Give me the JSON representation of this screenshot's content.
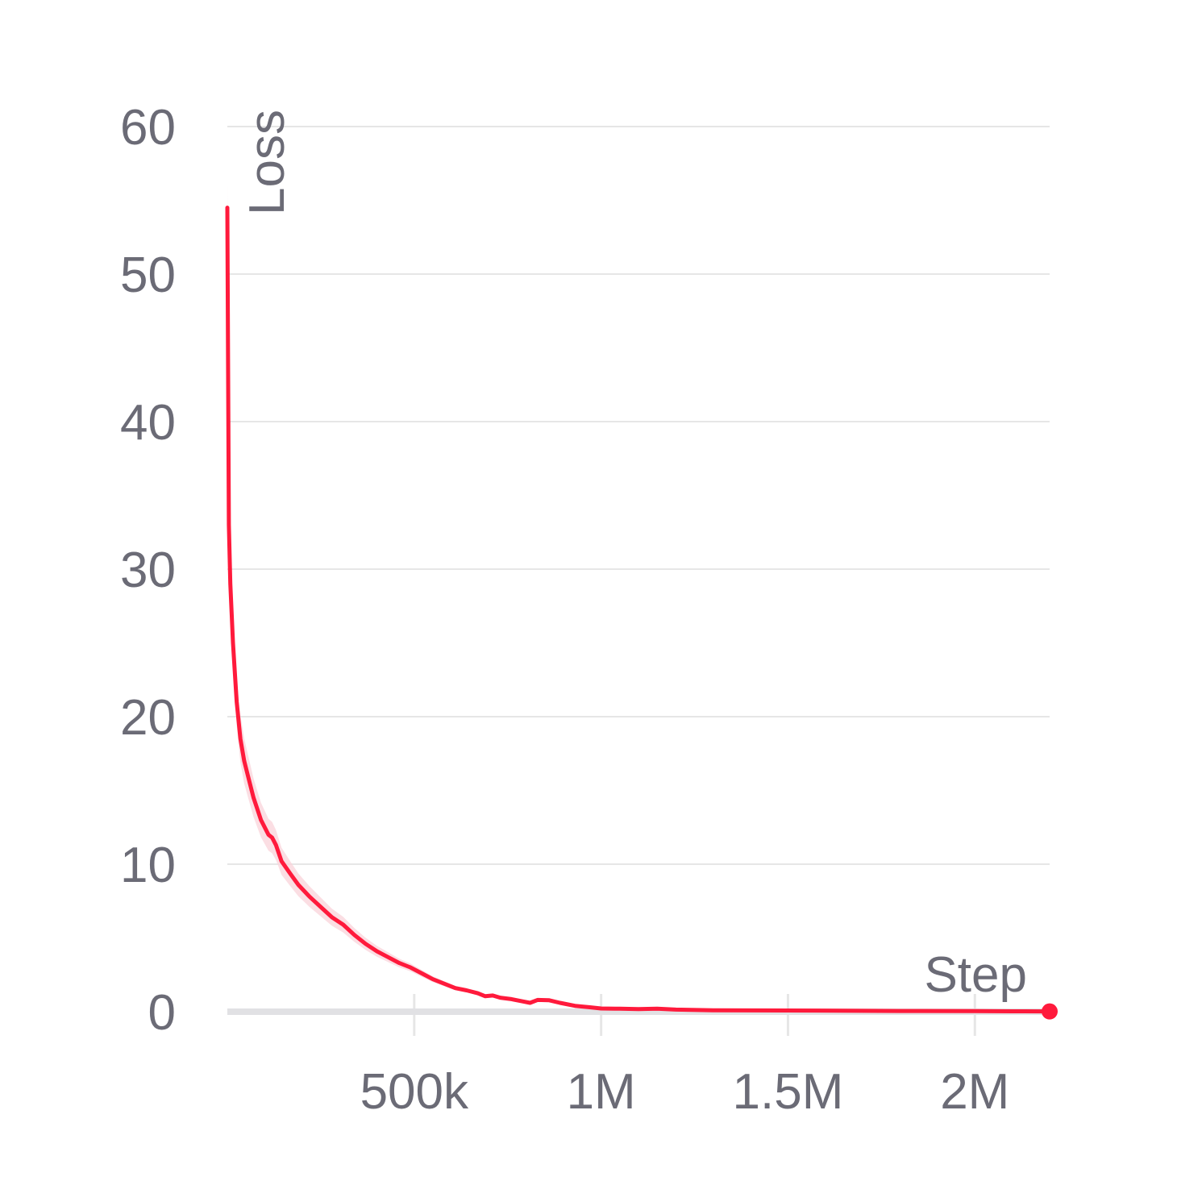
{
  "chart_data": {
    "type": "line",
    "title": "",
    "xlabel": "Step",
    "ylabel": "Loss",
    "xlim": [
      0,
      2200000
    ],
    "ylim": [
      0,
      60
    ],
    "x_ticks": [
      {
        "value": 500000,
        "label": "500k"
      },
      {
        "value": 1000000,
        "label": "1M"
      },
      {
        "value": 1500000,
        "label": "1.5M"
      },
      {
        "value": 2000000,
        "label": "2M"
      }
    ],
    "y_ticks": [
      {
        "value": 0,
        "label": "0"
      },
      {
        "value": 10,
        "label": "10"
      },
      {
        "value": 20,
        "label": "20"
      },
      {
        "value": 30,
        "label": "30"
      },
      {
        "value": 40,
        "label": "40"
      },
      {
        "value": 50,
        "label": "50"
      },
      {
        "value": 60,
        "label": "60"
      }
    ],
    "grid": true,
    "legend": "none",
    "colors": {
      "line": "#ff1a3c",
      "band": "#f9d3da",
      "grid": "#e6e6e6",
      "axis": "#e1e1e4",
      "tick_text": "#6b6b76"
    },
    "series": [
      {
        "values": [
          [
            0,
            54.5
          ],
          [
            2000,
            44
          ],
          [
            4000,
            33
          ],
          [
            8000,
            29
          ],
          [
            15000,
            25
          ],
          [
            25000,
            21
          ],
          [
            35000,
            18.5
          ],
          [
            45000,
            17
          ],
          [
            55000,
            16
          ],
          [
            70000,
            14.5
          ],
          [
            90000,
            13
          ],
          [
            110000,
            12
          ],
          [
            120000,
            11.8
          ],
          [
            130000,
            11.3
          ],
          [
            145000,
            10.2
          ],
          [
            170000,
            9.3
          ],
          [
            190000,
            8.6
          ],
          [
            220000,
            7.8
          ],
          [
            250000,
            7.1
          ],
          [
            280000,
            6.4
          ],
          [
            310000,
            5.9
          ],
          [
            340000,
            5.2
          ],
          [
            370000,
            4.6
          ],
          [
            400000,
            4.1
          ],
          [
            430000,
            3.7
          ],
          [
            460000,
            3.3
          ],
          [
            490000,
            3.0
          ],
          [
            520000,
            2.6
          ],
          [
            550000,
            2.2
          ],
          [
            580000,
            1.9
          ],
          [
            610000,
            1.6
          ],
          [
            640000,
            1.45
          ],
          [
            670000,
            1.25
          ],
          [
            690000,
            1.05
          ],
          [
            710000,
            1.1
          ],
          [
            730000,
            0.95
          ],
          [
            760000,
            0.85
          ],
          [
            790000,
            0.7
          ],
          [
            810000,
            0.6
          ],
          [
            830000,
            0.8
          ],
          [
            860000,
            0.78
          ],
          [
            890000,
            0.6
          ],
          [
            930000,
            0.4
          ],
          [
            970000,
            0.3
          ],
          [
            1000000,
            0.22
          ],
          [
            1050000,
            0.2
          ],
          [
            1100000,
            0.18
          ],
          [
            1150000,
            0.2
          ],
          [
            1200000,
            0.14
          ],
          [
            1300000,
            0.1
          ],
          [
            1500000,
            0.08
          ],
          [
            1800000,
            0.05
          ],
          [
            2000000,
            0.04
          ],
          [
            2100000,
            0.03
          ],
          [
            2190000,
            0.02
          ]
        ]
      }
    ]
  }
}
